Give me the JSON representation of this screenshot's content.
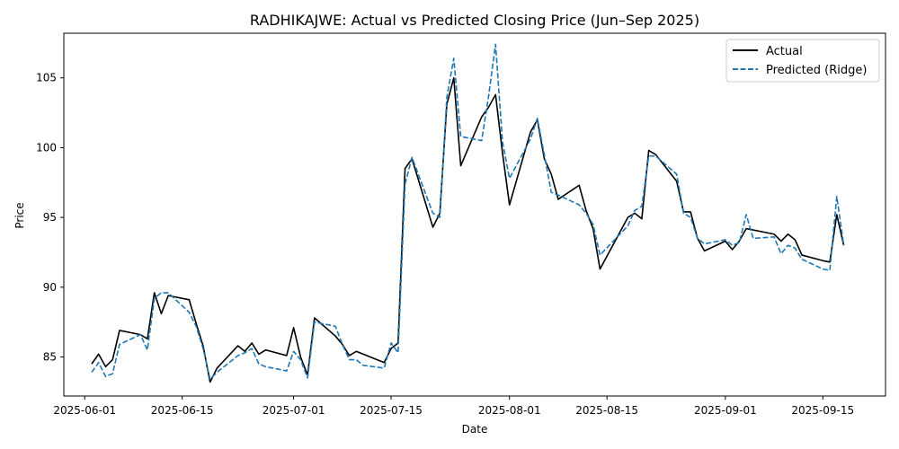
{
  "chart_data": {
    "type": "line",
    "title": "RADHIKAJWE: Actual vs Predicted Closing Price (Jun–Sep 2025)",
    "xlabel": "Date",
    "ylabel": "Price",
    "xlim": [
      "2025-05-29",
      "2025-09-24"
    ],
    "ylim": [
      82.2,
      108.2
    ],
    "x_ticks": [
      "2025-06-01",
      "2025-06-15",
      "2025-07-01",
      "2025-07-15",
      "2025-08-01",
      "2025-08-15",
      "2025-09-01",
      "2025-09-15"
    ],
    "y_ticks": [
      85,
      90,
      95,
      100,
      105
    ],
    "grid": false,
    "legend_position": "top-right",
    "series": [
      {
        "name": "Actual",
        "color": "#000000",
        "style": "solid",
        "points": [
          [
            "2025-06-02",
            84.5
          ],
          [
            "2025-06-03",
            85.2
          ],
          [
            "2025-06-04",
            84.3
          ],
          [
            "2025-06-05",
            84.8
          ],
          [
            "2025-06-06",
            86.9
          ],
          [
            "2025-06-09",
            86.6
          ],
          [
            "2025-06-10",
            86.3
          ],
          [
            "2025-06-11",
            89.6
          ],
          [
            "2025-06-12",
            88.1
          ],
          [
            "2025-06-13",
            89.4
          ],
          [
            "2025-06-16",
            89.1
          ],
          [
            "2025-06-17",
            87.4
          ],
          [
            "2025-06-18",
            85.8
          ],
          [
            "2025-06-19",
            83.2
          ],
          [
            "2025-06-20",
            84.2
          ],
          [
            "2025-06-23",
            85.8
          ],
          [
            "2025-06-24",
            85.4
          ],
          [
            "2025-06-25",
            86.0
          ],
          [
            "2025-06-26",
            85.2
          ],
          [
            "2025-06-27",
            85.5
          ],
          [
            "2025-06-30",
            85.1
          ],
          [
            "2025-07-01",
            87.1
          ],
          [
            "2025-07-02",
            85.0
          ],
          [
            "2025-07-03",
            83.7
          ],
          [
            "2025-07-04",
            87.8
          ],
          [
            "2025-07-07",
            86.5
          ],
          [
            "2025-07-08",
            85.9
          ],
          [
            "2025-07-09",
            85.1
          ],
          [
            "2025-07-10",
            85.4
          ],
          [
            "2025-07-14",
            84.6
          ],
          [
            "2025-07-15",
            85.6
          ],
          [
            "2025-07-16",
            86.0
          ],
          [
            "2025-07-17",
            98.5
          ],
          [
            "2025-07-18",
            99.2
          ],
          [
            "2025-07-21",
            94.3
          ],
          [
            "2025-07-22",
            95.3
          ],
          [
            "2025-07-23",
            103.1
          ],
          [
            "2025-07-24",
            105.0
          ],
          [
            "2025-07-25",
            98.7
          ],
          [
            "2025-07-28",
            102.2
          ],
          [
            "2025-07-29",
            102.9
          ],
          [
            "2025-07-30",
            103.8
          ],
          [
            "2025-07-31",
            99.6
          ],
          [
            "2025-08-01",
            95.9
          ],
          [
            "2025-08-04",
            101.1
          ],
          [
            "2025-08-05",
            102.0
          ],
          [
            "2025-08-06",
            99.2
          ],
          [
            "2025-08-07",
            98.1
          ],
          [
            "2025-08-08",
            96.3
          ],
          [
            "2025-08-11",
            97.3
          ],
          [
            "2025-08-12",
            95.5
          ],
          [
            "2025-08-13",
            94.2
          ],
          [
            "2025-08-14",
            91.3
          ],
          [
            "2025-08-18",
            95.0
          ],
          [
            "2025-08-19",
            95.3
          ],
          [
            "2025-08-20",
            94.9
          ],
          [
            "2025-08-21",
            99.8
          ],
          [
            "2025-08-22",
            99.5
          ],
          [
            "2025-08-25",
            97.6
          ],
          [
            "2025-08-26",
            95.4
          ],
          [
            "2025-08-27",
            95.4
          ],
          [
            "2025-08-28",
            93.5
          ],
          [
            "2025-08-29",
            92.6
          ],
          [
            "2025-09-01",
            93.3
          ],
          [
            "2025-09-02",
            92.7
          ],
          [
            "2025-09-03",
            93.3
          ],
          [
            "2025-09-04",
            94.2
          ],
          [
            "2025-09-08",
            93.8
          ],
          [
            "2025-09-09",
            93.3
          ],
          [
            "2025-09-10",
            93.8
          ],
          [
            "2025-09-11",
            93.4
          ],
          [
            "2025-09-12",
            92.3
          ],
          [
            "2025-09-15",
            91.9
          ],
          [
            "2025-09-16",
            91.8
          ],
          [
            "2025-09-17",
            95.2
          ],
          [
            "2025-09-18",
            93.0
          ]
        ]
      },
      {
        "name": "Predicted (Ridge)",
        "color": "#1f77b4",
        "style": "dashed",
        "points": [
          [
            "2025-06-02",
            83.9
          ],
          [
            "2025-06-03",
            84.6
          ],
          [
            "2025-06-04",
            83.6
          ],
          [
            "2025-06-05",
            83.8
          ],
          [
            "2025-06-06",
            85.9
          ],
          [
            "2025-06-09",
            86.6
          ],
          [
            "2025-06-10",
            85.5
          ],
          [
            "2025-06-11",
            89.2
          ],
          [
            "2025-06-12",
            89.6
          ],
          [
            "2025-06-13",
            89.6
          ],
          [
            "2025-06-16",
            88.2
          ],
          [
            "2025-06-17",
            87.2
          ],
          [
            "2025-06-18",
            85.6
          ],
          [
            "2025-06-19",
            83.4
          ],
          [
            "2025-06-20",
            83.9
          ],
          [
            "2025-06-23",
            85.1
          ],
          [
            "2025-06-24",
            85.3
          ],
          [
            "2025-06-25",
            85.6
          ],
          [
            "2025-06-26",
            84.5
          ],
          [
            "2025-06-27",
            84.3
          ],
          [
            "2025-06-30",
            84.0
          ],
          [
            "2025-07-01",
            85.4
          ],
          [
            "2025-07-02",
            84.8
          ],
          [
            "2025-07-03",
            83.5
          ],
          [
            "2025-07-04",
            87.5
          ],
          [
            "2025-07-07",
            87.2
          ],
          [
            "2025-07-08",
            85.9
          ],
          [
            "2025-07-09",
            84.8
          ],
          [
            "2025-07-10",
            84.8
          ],
          [
            "2025-07-11",
            84.4
          ],
          [
            "2025-07-14",
            84.2
          ],
          [
            "2025-07-15",
            86.0
          ],
          [
            "2025-07-16",
            85.3
          ],
          [
            "2025-07-17",
            97.4
          ],
          [
            "2025-07-18",
            99.3
          ],
          [
            "2025-07-21",
            95.3
          ],
          [
            "2025-07-22",
            95.0
          ],
          [
            "2025-07-23",
            103.6
          ],
          [
            "2025-07-24",
            106.4
          ],
          [
            "2025-07-25",
            100.8
          ],
          [
            "2025-07-28",
            100.5
          ],
          [
            "2025-07-29",
            103.7
          ],
          [
            "2025-07-30",
            107.4
          ],
          [
            "2025-07-31",
            100.4
          ],
          [
            "2025-08-01",
            97.8
          ],
          [
            "2025-08-04",
            100.6
          ],
          [
            "2025-08-05",
            102.1
          ],
          [
            "2025-08-06",
            99.5
          ],
          [
            "2025-08-07",
            96.8
          ],
          [
            "2025-08-08",
            96.6
          ],
          [
            "2025-08-11",
            95.9
          ],
          [
            "2025-08-12",
            95.3
          ],
          [
            "2025-08-13",
            94.5
          ],
          [
            "2025-08-14",
            92.3
          ],
          [
            "2025-08-18",
            94.4
          ],
          [
            "2025-08-19",
            95.5
          ],
          [
            "2025-08-20",
            95.8
          ],
          [
            "2025-08-21",
            99.4
          ],
          [
            "2025-08-22",
            99.4
          ],
          [
            "2025-08-25",
            98.1
          ],
          [
            "2025-08-26",
            95.3
          ],
          [
            "2025-08-27",
            95.0
          ],
          [
            "2025-08-28",
            93.5
          ],
          [
            "2025-08-29",
            93.1
          ],
          [
            "2025-09-01",
            93.4
          ],
          [
            "2025-09-02",
            93.0
          ],
          [
            "2025-09-03",
            93.2
          ],
          [
            "2025-09-04",
            95.2
          ],
          [
            "2025-09-05",
            93.5
          ],
          [
            "2025-09-08",
            93.6
          ],
          [
            "2025-09-09",
            92.4
          ],
          [
            "2025-09-10",
            93.0
          ],
          [
            "2025-09-11",
            92.8
          ],
          [
            "2025-09-12",
            92.0
          ],
          [
            "2025-09-15",
            91.3
          ],
          [
            "2025-09-16",
            91.2
          ],
          [
            "2025-09-17",
            96.5
          ],
          [
            "2025-09-18",
            93.0
          ]
        ]
      }
    ]
  }
}
